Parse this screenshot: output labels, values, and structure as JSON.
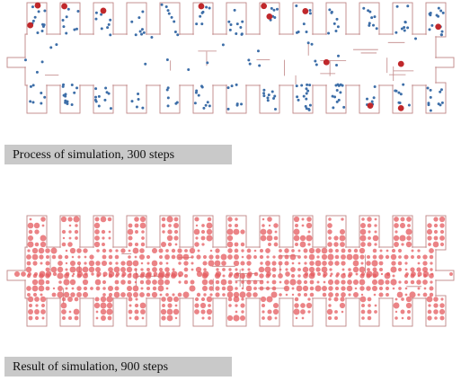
{
  "captions": [
    "Process of simulation, 300 steps",
    "Result of simulation, 900 steps"
  ]
}
